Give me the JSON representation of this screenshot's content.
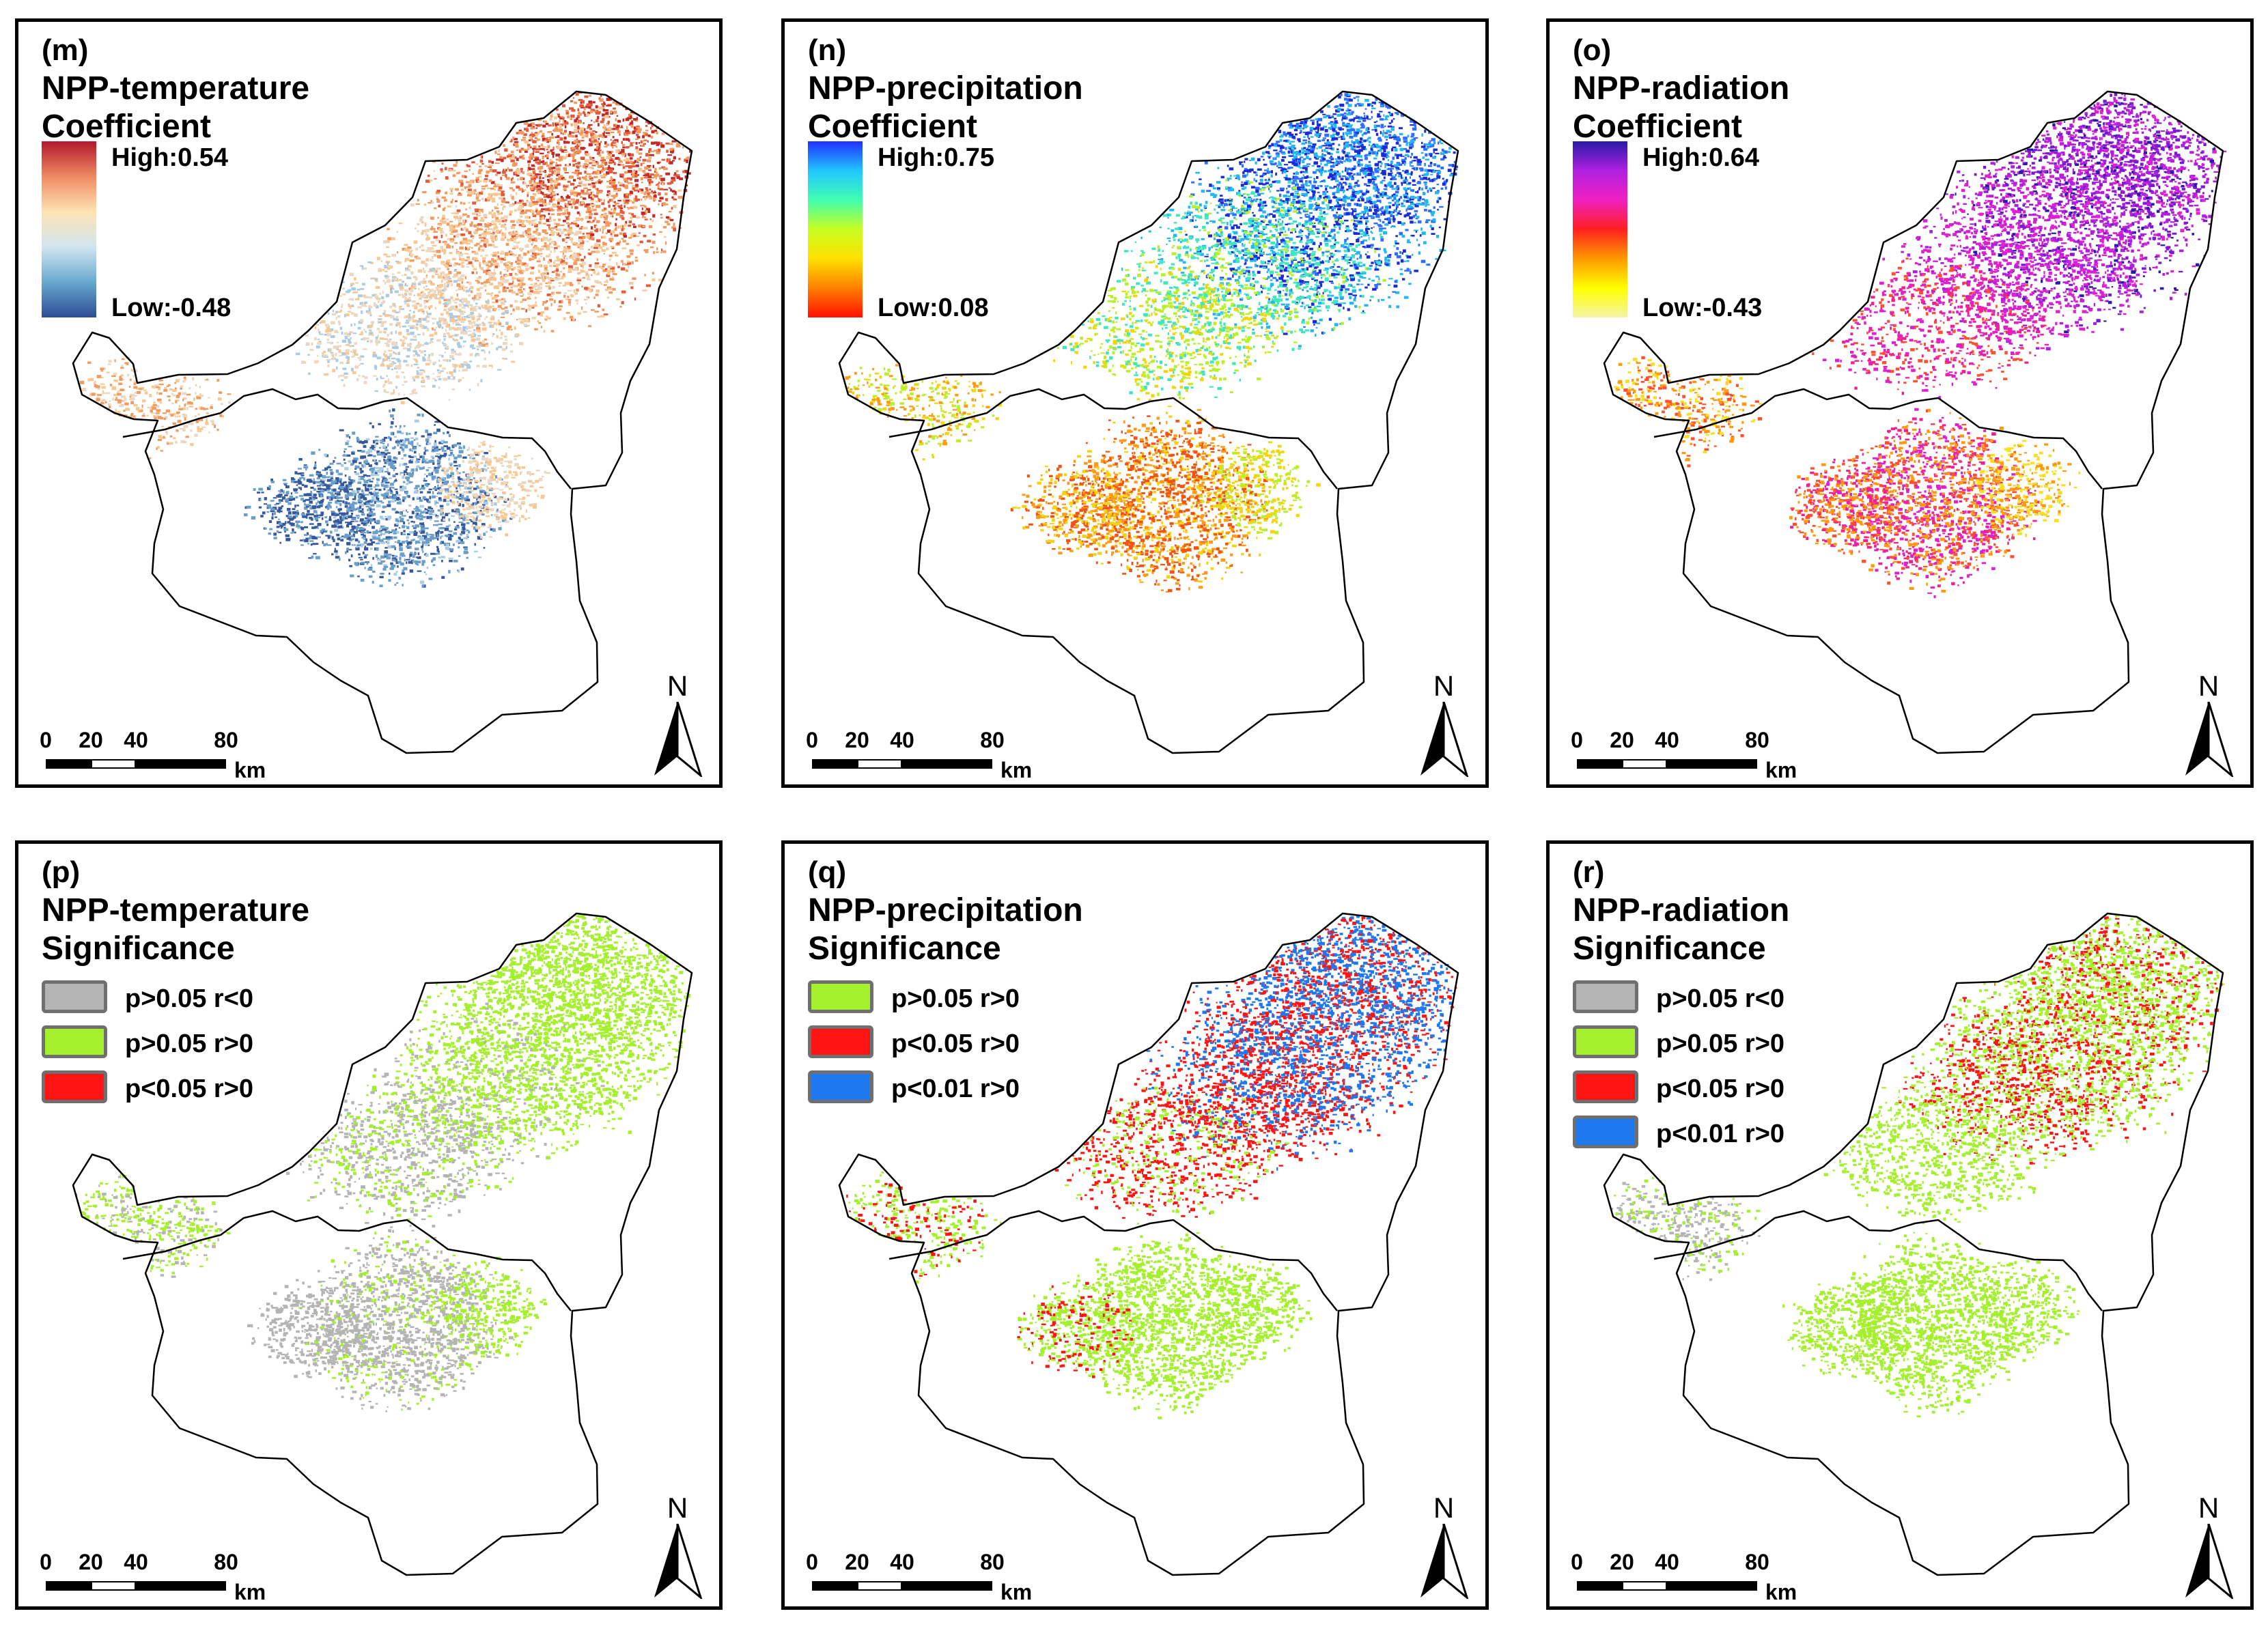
{
  "scale": {
    "ticks": [
      "0",
      "20",
      "40",
      "80"
    ],
    "unit": "km"
  },
  "north_label": "N",
  "panels": [
    {
      "label": "(m)",
      "title": "NPP-temperature",
      "subtitle": "Coefficient",
      "colorbar": {
        "high": "High:0.54",
        "low": "Low:-0.48",
        "colors": [
          "#b2182b",
          "#ef8a62",
          "#fee4b3",
          "#d1e5f0",
          "#67a9cf",
          "#2c4c94"
        ]
      }
    },
    {
      "label": "(n)",
      "title": "NPP-precipitation",
      "subtitle": "Coefficient",
      "colorbar": {
        "high": "High:0.75",
        "low": "Low:0.08",
        "colors": [
          "#1f2fff",
          "#22c6ff",
          "#40ffb0",
          "#c8ff20",
          "#ffe000",
          "#ff8000",
          "#ff1000"
        ]
      }
    },
    {
      "label": "(o)",
      "title": "NPP-radiation",
      "subtitle": "Coefficient",
      "colorbar": {
        "high": "High:0.64",
        "low": "Low:-0.43",
        "colors": [
          "#2a1aa8",
          "#b020e0",
          "#f020c0",
          "#ff2020",
          "#ff9a00",
          "#ffff00",
          "#f4f4a8"
        ]
      }
    },
    {
      "label": "(p)",
      "title": "NPP-temperature",
      "subtitle": "Significance",
      "legend": [
        {
          "label": "p>0.05  r<0",
          "color": "#b4b4b4"
        },
        {
          "label": "p>0.05  r>0",
          "color": "#a4f02c"
        },
        {
          "label": "p<0.05  r>0",
          "color": "#ff1414"
        }
      ]
    },
    {
      "label": "(q)",
      "title": "NPP-precipitation",
      "subtitle": "Significance",
      "legend": [
        {
          "label": "p>0.05  r>0",
          "color": "#a4f02c"
        },
        {
          "label": "p<0.05  r>0",
          "color": "#ff1414"
        },
        {
          "label": "p<0.01  r>0",
          "color": "#1e78f0"
        }
      ]
    },
    {
      "label": "(r)",
      "title": "NPP-radiation",
      "subtitle": "Significance",
      "legend": [
        {
          "label": "p>0.05  r<0",
          "color": "#b4b4b4"
        },
        {
          "label": "p>0.05  r>0",
          "color": "#a4f02c"
        },
        {
          "label": "p<0.05  r>0",
          "color": "#ff1414"
        },
        {
          "label": "p<0.01  r>0",
          "color": "#1e78f0"
        }
      ]
    }
  ]
}
